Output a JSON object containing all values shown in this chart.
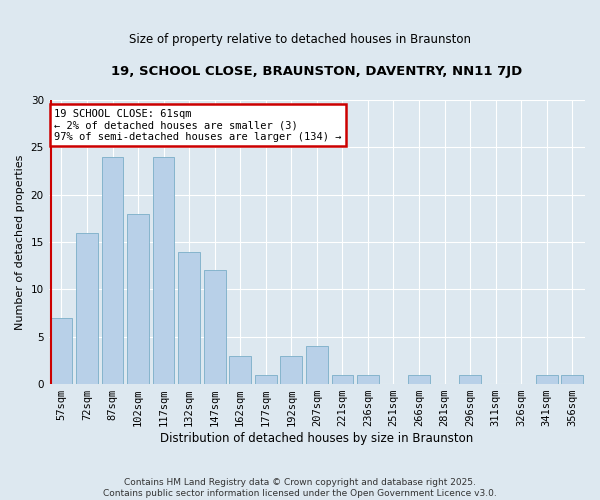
{
  "title": "19, SCHOOL CLOSE, BRAUNSTON, DAVENTRY, NN11 7JD",
  "subtitle": "Size of property relative to detached houses in Braunston",
  "xlabel": "Distribution of detached houses by size in Braunston",
  "ylabel": "Number of detached properties",
  "categories": [
    "57sqm",
    "72sqm",
    "87sqm",
    "102sqm",
    "117sqm",
    "132sqm",
    "147sqm",
    "162sqm",
    "177sqm",
    "192sqm",
    "207sqm",
    "221sqm",
    "236sqm",
    "251sqm",
    "266sqm",
    "281sqm",
    "296sqm",
    "311sqm",
    "326sqm",
    "341sqm",
    "356sqm"
  ],
  "values": [
    7,
    16,
    24,
    18,
    24,
    14,
    12,
    3,
    1,
    3,
    4,
    1,
    1,
    0,
    1,
    0,
    1,
    0,
    0,
    1,
    1
  ],
  "bar_color": "#b8d0e8",
  "bar_edge_color": "#7aaec8",
  "annotation_line1": "19 SCHOOL CLOSE: 61sqm",
  "annotation_line2": "← 2% of detached houses are smaller (3)",
  "annotation_line3": "97% of semi-detached houses are larger (134) →",
  "annotation_box_edge": "#cc0000",
  "ylim": [
    0,
    30
  ],
  "yticks": [
    0,
    5,
    10,
    15,
    20,
    25,
    30
  ],
  "footer_line1": "Contains HM Land Registry data © Crown copyright and database right 2025.",
  "footer_line2": "Contains public sector information licensed under the Open Government Licence v3.0.",
  "bg_color": "#dde8f0",
  "plot_bg_color": "#dde8f0",
  "grid_color": "#ffffff",
  "marker_color": "#cc0000"
}
